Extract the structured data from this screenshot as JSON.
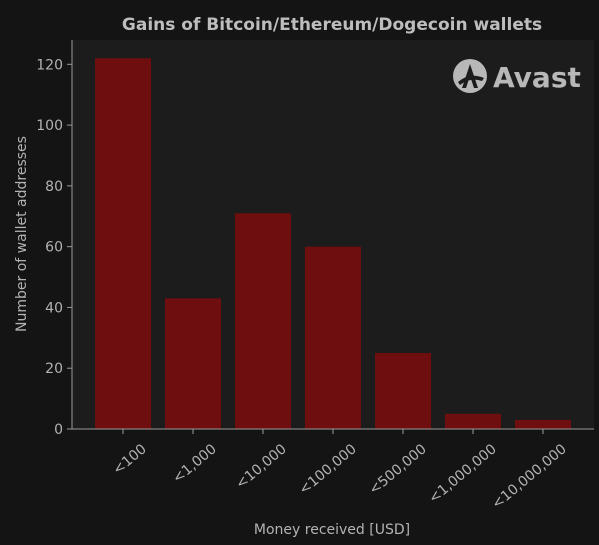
{
  "chart_data": {
    "type": "bar",
    "title": "Gains of Bitcoin/Ethereum/Dogecoin wallets",
    "xlabel": "Money received [USD]",
    "ylabel": "Number of wallet addresses",
    "categories": [
      "<100",
      "<1,000",
      "<10,000",
      "<100,000",
      "<500,000",
      "<1,000,000",
      "<10,000,000"
    ],
    "values": [
      122,
      43,
      71,
      60,
      25,
      5,
      3
    ],
    "ylim": [
      0,
      128
    ],
    "yticks": [
      0,
      20,
      40,
      60,
      80,
      100,
      120
    ],
    "grid": false,
    "legend": "none"
  },
  "logo": {
    "text": "Avast",
    "icon": "avast-logo-icon"
  },
  "colors": {
    "background": "#141414",
    "plot_background": "#1c1c1c",
    "bar": "#6e0e0e",
    "text": "#b3b3b3",
    "title": "#bdbdbd",
    "axis": "#9a9a9a",
    "logo": "#b8b8b8"
  }
}
